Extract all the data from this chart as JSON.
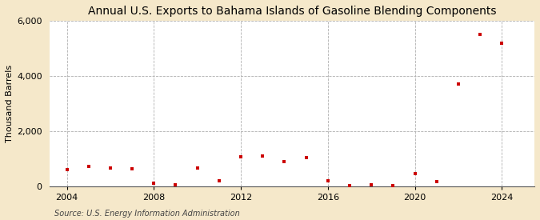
{
  "title": "Annual U.S. Exports to Bahama Islands of Gasoline Blending Components",
  "ylabel": "Thousand Barrels",
  "source": "Source: U.S. Energy Information Administration",
  "years": [
    2004,
    2005,
    2006,
    2007,
    2008,
    2009,
    2010,
    2011,
    2012,
    2013,
    2014,
    2015,
    2016,
    2017,
    2018,
    2019,
    2020,
    2021,
    2022,
    2023,
    2024
  ],
  "values": [
    600,
    700,
    650,
    640,
    110,
    50,
    660,
    200,
    1050,
    1100,
    880,
    1040,
    200,
    20,
    30,
    20,
    450,
    150,
    3700,
    5500,
    5200
  ],
  "marker_color": "#cc0000",
  "bg_color": "#f5e8ca",
  "plot_bg_color": "#ffffff",
  "grid_color": "#b0b0b0",
  "ylim": [
    0,
    6000
  ],
  "yticks": [
    0,
    2000,
    4000,
    6000
  ],
  "xticks": [
    2004,
    2008,
    2012,
    2016,
    2020,
    2024
  ],
  "xlim": [
    2003.2,
    2025.5
  ],
  "title_fontsize": 10,
  "label_fontsize": 8,
  "tick_fontsize": 8,
  "source_fontsize": 7
}
